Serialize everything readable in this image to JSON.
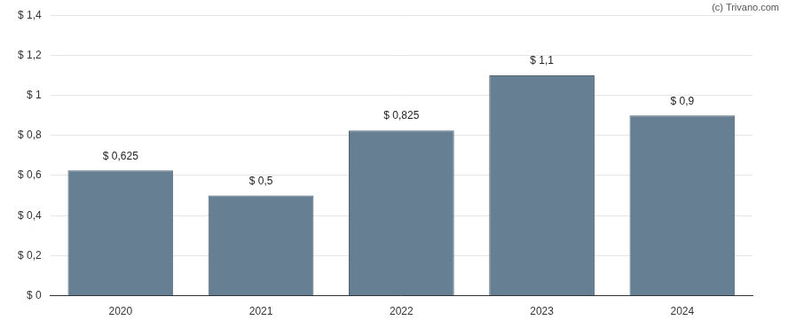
{
  "chart_data": {
    "type": "bar",
    "annotations": [
      "(c) Trivano.com"
    ],
    "categories": [
      "2020",
      "2021",
      "2022",
      "2023",
      "2024"
    ],
    "values": [
      0.625,
      0.5,
      0.825,
      1.1,
      0.9
    ],
    "value_labels": [
      "$ 0,625",
      "$ 0,5",
      "$ 0,825",
      "$ 1,1",
      "$ 0,9"
    ],
    "data_labels": true,
    "color": "#667f93",
    "ylim": [
      0,
      1.4
    ],
    "yticks": [
      {
        "value": 0,
        "label": "$ 0"
      },
      {
        "value": 0.2,
        "label": "$ 0,2"
      },
      {
        "value": 0.4,
        "label": "$ 0,4"
      },
      {
        "value": 0.6,
        "label": "$ 0,6"
      },
      {
        "value": 0.8,
        "label": "$ 0,8"
      },
      {
        "value": 1,
        "label": "$ 1"
      },
      {
        "value": 1.2,
        "label": "$ 1,2"
      },
      {
        "value": 1.4,
        "label": "$ 1,4"
      }
    ],
    "grid": true
  }
}
